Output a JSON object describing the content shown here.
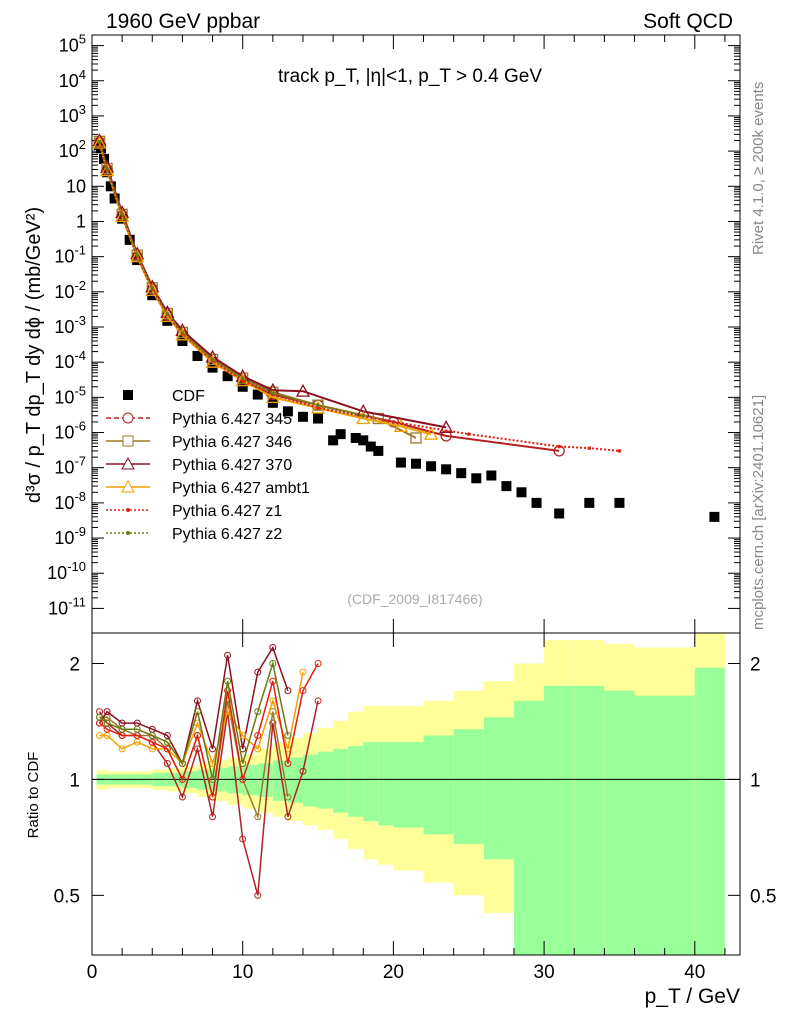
{
  "header": {
    "left": "1960 GeV ppbar",
    "right": "Soft QCD"
  },
  "side_labels": {
    "rivet": "Rivet 4.1.0, ≥ 200k events",
    "mcplots": "mcplots.cern.ch [arXiv:2401.10621]"
  },
  "chart_data": [
    {
      "type": "scatter",
      "title": "track p_T, |η|<1, p_T > 0.4 GeV",
      "watermark": "(CDF_2009_I817466)",
      "xlabel": "p_T / GeV",
      "ylabel": "d³σ / p_T dp_T dy dϕ / (mb/GeV²)",
      "y_scale": "log",
      "xlim": [
        0,
        43
      ],
      "ylim": [
        2e-12,
        200000.0
      ],
      "x_ticks": [
        "0",
        "10",
        "20",
        "30",
        "40"
      ],
      "y_ticks": [
        "10^-11",
        "10^-10",
        "10^-9",
        "10^-8",
        "10^-7",
        "10^-6",
        "10^-5",
        "10^-4",
        "10^-3",
        "10^-2",
        "10^-1",
        "1",
        "10",
        "10^2",
        "10^3",
        "10^4",
        "10^5"
      ],
      "legend_placement": "middle-left",
      "legend": [
        "CDF",
        "Pythia 6.427 345",
        "Pythia 6.427 346",
        "Pythia 6.427 370",
        "Pythia 6.427 ambt1",
        "Pythia 6.427 z1",
        "Pythia 6.427 z2"
      ],
      "series": [
        {
          "name": "CDF",
          "color": "#000000",
          "marker": "filled-square",
          "x": [
            0.45,
            0.6,
            0.8,
            1.0,
            1.25,
            1.5,
            2.0,
            2.5,
            3.0,
            4.0,
            5.0,
            6.0,
            7.0,
            8.0,
            9.0,
            10.0,
            11.0,
            12.0,
            13.0,
            14.0,
            15.0,
            16.0,
            16.5,
            17.5,
            18.0,
            18.5,
            19.0,
            20.5,
            21.5,
            22.5,
            23.5,
            24.5,
            25.5,
            26.5,
            27.5,
            28.5,
            29.5,
            31.0,
            33.0,
            35.0,
            41.3
          ],
          "y": [
            150,
            120,
            60,
            25,
            10,
            4.5,
            1.2,
            0.3,
            0.08,
            0.008,
            0.0015,
            0.0004,
            0.00015,
            7e-05,
            4e-05,
            2e-05,
            1.2e-05,
            7e-06,
            4e-06,
            2.8e-06,
            2.5e-06,
            6e-07,
            9e-07,
            7e-07,
            6e-07,
            4e-07,
            3e-07,
            1.4e-07,
            1.3e-07,
            1.1e-07,
            9e-08,
            7e-08,
            5e-08,
            6e-08,
            3e-08,
            2e-08,
            1e-08,
            5e-09,
            1e-08,
            1e-08,
            4e-09
          ]
        },
        {
          "name": "Pythia 6.427 345",
          "color": "#b22222",
          "marker": "open-circle",
          "x": [
            0.5,
            1.0,
            2.0,
            3.0,
            4.0,
            5.0,
            6.0,
            8.0,
            10.0,
            12.0,
            15.0,
            20.0,
            23.5,
            31.0
          ],
          "y": [
            180,
            30,
            1.5,
            0.1,
            0.012,
            0.0022,
            0.0006,
            0.0001,
            3e-05,
            1.2e-05,
            6e-06,
            2e-06,
            8e-07,
            3e-07
          ]
        },
        {
          "name": "Pythia 6.427 346",
          "color": "#9a7a2a",
          "marker": "open-square",
          "x": [
            0.5,
            1.0,
            2.0,
            3.0,
            4.0,
            5.0,
            6.0,
            8.0,
            10.0,
            12.0,
            15.0,
            19.0,
            21.5
          ],
          "y": [
            190,
            32,
            1.6,
            0.11,
            0.013,
            0.0024,
            0.0007,
            0.00012,
            3.5e-05,
            1.4e-05,
            6e-06,
            2.5e-06,
            7e-07
          ]
        },
        {
          "name": "Pythia 6.427 370",
          "color": "#8b1020",
          "marker": "open-triangle",
          "x": [
            0.5,
            1.0,
            2.0,
            3.0,
            4.0,
            5.0,
            6.0,
            8.0,
            10.0,
            12.0,
            14.0,
            18.0,
            23.5
          ],
          "y": [
            200,
            35,
            1.8,
            0.12,
            0.014,
            0.0026,
            0.0008,
            0.00014,
            4e-05,
            1.6e-05,
            1.5e-05,
            4e-06,
            1.4e-06
          ]
        },
        {
          "name": "Pythia 6.427 ambt1",
          "color": "#f0a000",
          "marker": "open-triangle",
          "x": [
            0.5,
            1.0,
            2.0,
            3.0,
            4.0,
            5.0,
            6.0,
            8.0,
            10.0,
            12.0,
            15.0,
            18.0,
            20.5,
            22.5
          ],
          "y": [
            170,
            28,
            1.4,
            0.1,
            0.011,
            0.002,
            0.0006,
            0.0001,
            3e-05,
            1e-05,
            5e-06,
            2.5e-06,
            1.5e-06,
            9e-07
          ]
        },
        {
          "name": "Pythia 6.427 z1",
          "color": "#dd2211",
          "marker": "dot",
          "x": [
            0.5,
            1.0,
            2.0,
            3.0,
            4.0,
            5.0,
            6.0,
            8.0,
            10.0,
            12.0,
            15.0,
            20.0,
            25.0,
            31.0,
            33.0,
            35.0
          ],
          "y": [
            175,
            29,
            1.5,
            0.1,
            0.012,
            0.0023,
            0.00065,
            0.00011,
            3e-05,
            1.2e-05,
            5e-06,
            2e-06,
            9e-07,
            4e-07,
            3.6e-07,
            3e-07
          ]
        },
        {
          "name": "Pythia 6.427 z2",
          "color": "#6b7a10",
          "marker": "dot",
          "x": [
            0.5,
            1.0,
            2.0,
            3.0,
            4.0,
            5.0,
            6.0,
            8.0,
            10.0,
            12.0,
            15.0,
            18.0
          ],
          "y": [
            185,
            31,
            1.6,
            0.11,
            0.013,
            0.0024,
            0.0007,
            0.00012,
            3.5e-05,
            1.3e-05,
            6e-06,
            3e-06
          ]
        }
      ]
    },
    {
      "type": "scatter",
      "ylabel": "Ratio to CDF",
      "xlabel": "p_T / GeV",
      "y_scale": "log",
      "xlim": [
        0,
        43
      ],
      "ylim": [
        0.35,
        2.4
      ],
      "y_ticks": [
        "0.5",
        "1",
        "2"
      ],
      "reference_line": 1,
      "bands": {
        "outer_color": "#ffff99",
        "inner_color": "#99ff99",
        "x_edges": [
          0.3,
          1,
          2,
          3,
          4,
          5,
          6,
          7,
          8,
          9,
          10,
          11,
          12,
          13,
          14,
          15,
          16,
          17,
          18,
          19,
          20,
          22,
          24,
          26,
          28,
          30,
          32,
          34,
          36,
          40,
          42
        ],
        "outer_lo": [
          0.94,
          0.95,
          0.95,
          0.95,
          0.94,
          0.93,
          0.92,
          0.9,
          0.88,
          0.86,
          0.84,
          0.82,
          0.8,
          0.78,
          0.76,
          0.74,
          0.7,
          0.66,
          0.62,
          0.6,
          0.58,
          0.54,
          0.5,
          0.45,
          0.4,
          0.35,
          0.35,
          0.35,
          0.35,
          0.35,
          0.35
        ],
        "outer_hi": [
          1.06,
          1.05,
          1.05,
          1.05,
          1.06,
          1.07,
          1.08,
          1.1,
          1.12,
          1.14,
          1.16,
          1.2,
          1.24,
          1.28,
          1.32,
          1.36,
          1.42,
          1.5,
          1.55,
          1.55,
          1.55,
          1.6,
          1.7,
          1.8,
          2.0,
          2.3,
          2.3,
          2.25,
          2.2,
          2.4,
          2.4
        ],
        "inner_lo": [
          0.97,
          0.97,
          0.97,
          0.97,
          0.96,
          0.96,
          0.95,
          0.94,
          0.93,
          0.92,
          0.91,
          0.9,
          0.88,
          0.87,
          0.85,
          0.84,
          0.82,
          0.8,
          0.78,
          0.76,
          0.75,
          0.72,
          0.68,
          0.62,
          0.35,
          0.35,
          0.35,
          0.35,
          0.35,
          0.35,
          0.35
        ],
        "inner_hi": [
          1.03,
          1.03,
          1.03,
          1.03,
          1.04,
          1.04,
          1.05,
          1.06,
          1.07,
          1.08,
          1.09,
          1.1,
          1.12,
          1.14,
          1.16,
          1.18,
          1.2,
          1.22,
          1.25,
          1.25,
          1.25,
          1.3,
          1.35,
          1.45,
          1.6,
          1.75,
          1.75,
          1.7,
          1.65,
          1.95,
          1.95
        ]
      },
      "series": [
        {
          "name": "Pythia 6.427 345",
          "color": "#b22222",
          "x": [
            0.5,
            1,
            2,
            3,
            4,
            5,
            6,
            7,
            8,
            9,
            10,
            11,
            12,
            13,
            14,
            15
          ],
          "y": [
            1.5,
            1.4,
            1.3,
            1.3,
            1.25,
            1.1,
            0.9,
            1.2,
            0.8,
            1.5,
            0.7,
            0.5,
            1.4,
            0.8,
            1.05,
            1.6
          ]
        },
        {
          "name": "Pythia 6.427 346",
          "color": "#9a7a2a",
          "x": [
            0.5,
            1,
            2,
            3,
            4,
            5,
            6,
            7,
            8,
            9,
            10,
            11,
            12,
            13
          ],
          "y": [
            1.45,
            1.45,
            1.35,
            1.3,
            1.3,
            1.2,
            1.0,
            1.3,
            0.9,
            1.6,
            1.0,
            0.8,
            1.5,
            0.9
          ]
        },
        {
          "name": "Pythia 6.427 370",
          "color": "#8b1020",
          "x": [
            0.5,
            1,
            2,
            3,
            4,
            5,
            6,
            7,
            8,
            9,
            10,
            11,
            12,
            13
          ],
          "y": [
            1.4,
            1.5,
            1.4,
            1.4,
            1.35,
            1.3,
            1.1,
            1.6,
            1.2,
            2.1,
            1.2,
            1.9,
            2.2,
            1.7
          ]
        },
        {
          "name": "Pythia 6.427 ambt1",
          "color": "#f0a000",
          "x": [
            0.5,
            1,
            2,
            3,
            4,
            5,
            6,
            7,
            8,
            9,
            10,
            11,
            12,
            13,
            14
          ],
          "y": [
            1.3,
            1.3,
            1.2,
            1.25,
            1.2,
            1.2,
            1.1,
            1.4,
            1.1,
            1.5,
            1.3,
            1.2,
            1.6,
            1.2,
            1.9
          ]
        },
        {
          "name": "Pythia 6.427 z1",
          "color": "#dd2211",
          "x": [
            0.5,
            1,
            2,
            3,
            4,
            5,
            6,
            7,
            8,
            9,
            10,
            11,
            12,
            13,
            14,
            15
          ],
          "y": [
            1.4,
            1.35,
            1.3,
            1.3,
            1.25,
            1.2,
            1.0,
            1.3,
            0.9,
            1.7,
            1.0,
            1.3,
            1.8,
            1.1,
            1.7,
            2.0
          ]
        },
        {
          "name": "Pythia 6.427 z2",
          "color": "#6b7a10",
          "x": [
            0.5,
            1,
            2,
            3,
            4,
            5,
            6,
            7,
            8,
            9,
            10,
            11,
            12,
            13
          ],
          "y": [
            1.45,
            1.4,
            1.35,
            1.35,
            1.3,
            1.25,
            1.1,
            1.5,
            1.0,
            1.8,
            1.1,
            1.5,
            2.0,
            1.3
          ]
        }
      ]
    }
  ]
}
